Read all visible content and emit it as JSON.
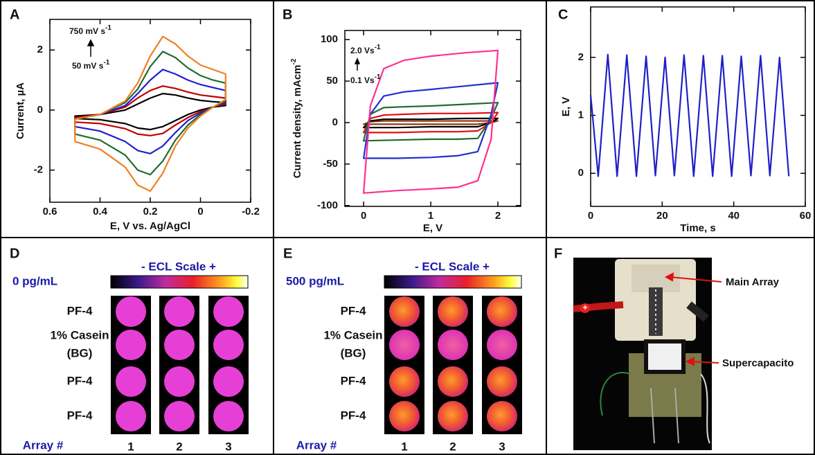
{
  "chart_data": [
    {
      "type": "cyclic_voltammogram",
      "panel": "A",
      "xlabel": "E, V vs. Ag/AgCl",
      "ylabel": "Current, µA",
      "annotations": [
        {
          "text": "750 mV s",
          "sup": "-1"
        },
        {
          "text": "50 mV s",
          "sup": "-1"
        }
      ],
      "xlim": [
        0.6,
        -0.2
      ],
      "ylim": [
        -3.07,
        3.02
      ],
      "xticks": [
        0.6,
        0.4,
        0.2,
        0,
        -0.2
      ],
      "yticks": [
        -2,
        0,
        2
      ],
      "x": [
        0.5,
        0.4,
        0.3,
        0.25,
        0.2,
        0.15,
        0.1,
        0.05,
        0,
        -0.05,
        -0.1,
        -0.1,
        -0.05,
        0,
        0.05,
        0.1,
        0.15,
        0.2,
        0.25,
        0.3,
        0.4,
        0.5
      ],
      "series": [
        {
          "color": "#000000",
          "values": [
            -0.2,
            -0.15,
            0,
            0.2,
            0.4,
            0.55,
            0.5,
            0.4,
            0.32,
            0.28,
            0.25,
            0.15,
            0.1,
            0,
            -0.15,
            -0.35,
            -0.55,
            -0.65,
            -0.6,
            -0.45,
            -0.32,
            -0.28
          ]
        },
        {
          "color": "#c00000",
          "values": [
            -0.25,
            -0.15,
            0.1,
            0.4,
            0.65,
            0.8,
            0.72,
            0.6,
            0.5,
            0.45,
            0.4,
            0.2,
            0.1,
            -0.05,
            -0.25,
            -0.5,
            -0.78,
            -0.85,
            -0.8,
            -0.62,
            -0.45,
            -0.4
          ]
        },
        {
          "color": "#1f1fd0",
          "values": [
            -0.3,
            -0.15,
            0.15,
            0.55,
            1.0,
            1.35,
            1.2,
            1.0,
            0.85,
            0.75,
            0.65,
            0.25,
            0.1,
            -0.1,
            -0.35,
            -0.75,
            -1.2,
            -1.45,
            -1.35,
            -1.05,
            -0.7,
            -0.55
          ]
        },
        {
          "color": "#1e6b2e",
          "values": [
            -0.3,
            -0.15,
            0.25,
            0.7,
            1.45,
            1.95,
            1.75,
            1.4,
            1.15,
            1.0,
            0.9,
            0.3,
            0.1,
            -0.15,
            -0.5,
            -1.0,
            -1.7,
            -2.15,
            -2.0,
            -1.5,
            -1.0,
            -0.8
          ]
        },
        {
          "color": "#f08020",
          "values": [
            -0.3,
            -0.15,
            0.3,
            0.9,
            1.8,
            2.45,
            2.2,
            1.8,
            1.5,
            1.35,
            1.2,
            0.35,
            0.1,
            -0.2,
            -0.6,
            -1.2,
            -2.1,
            -2.7,
            -2.5,
            -1.9,
            -1.3,
            -1.05
          ]
        }
      ]
    },
    {
      "type": "cyclic_voltammogram",
      "panel": "B",
      "xlabel": "E, V",
      "ylabel": {
        "text": "Current density, mAcm",
        "sup": "-2"
      },
      "annotations": [
        {
          "text": "2.0 Vs",
          "sup": "-1"
        },
        {
          "text": "0.1 Vs",
          "sup": "-1"
        }
      ],
      "xlim": [
        -0.28,
        2.34
      ],
      "ylim": [
        -101,
        111
      ],
      "xticks": [
        0,
        1,
        2
      ],
      "yticks": [
        -100,
        -50,
        0,
        50,
        100
      ],
      "x": [
        0,
        0.1,
        0.3,
        0.6,
        1,
        1.5,
        2,
        2,
        1.9,
        1.7,
        1.4,
        1,
        0.5,
        0
      ],
      "series": [
        {
          "color": "#8b3a10",
          "values": [
            -2,
            1,
            2,
            2,
            2,
            2,
            2,
            2,
            0,
            -2,
            -2,
            -2,
            -2,
            -2
          ]
        },
        {
          "color": "#000000",
          "values": [
            -6,
            2,
            4,
            4,
            4,
            5,
            5,
            5,
            0,
            -5,
            -5,
            -5,
            -6,
            -6
          ]
        },
        {
          "color": "#e01010",
          "values": [
            -12,
            5,
            9,
            10,
            11,
            11,
            12,
            12,
            0,
            -10,
            -11,
            -11,
            -12,
            -12
          ]
        },
        {
          "color": "#1e6b2e",
          "values": [
            -22,
            10,
            18,
            19,
            20,
            22,
            24,
            24,
            5,
            -19,
            -20,
            -20,
            -21,
            -22
          ]
        },
        {
          "color": "#1f2fd0",
          "values": [
            -43,
            10,
            32,
            37,
            40,
            44,
            48,
            48,
            10,
            -35,
            -40,
            -42,
            -43,
            -43
          ]
        },
        {
          "color": "#ff2f8f",
          "values": [
            -85,
            20,
            65,
            75,
            80,
            84,
            87,
            87,
            -20,
            -70,
            -78,
            -80,
            -82,
            -85
          ]
        }
      ]
    },
    {
      "type": "line",
      "panel": "C",
      "xlabel": "Time, s",
      "ylabel": "E, V",
      "xlim": [
        0,
        60
      ],
      "ylim": [
        -0.57,
        2.87
      ],
      "xticks": [
        0,
        20,
        40,
        60
      ],
      "yticks": [
        0,
        1,
        2
      ],
      "x": [
        0,
        2.1,
        4.8,
        7.4,
        10.1,
        12.8,
        15.5,
        18.1,
        20.8,
        23.4,
        26.1,
        28.8,
        31.5,
        34.1,
        36.8,
        39.4,
        42.1,
        44.8,
        47.5,
        50.1,
        52.8,
        55.4
      ],
      "series": [
        {
          "color": "#1f1fc8",
          "values": [
            1.35,
            -0.05,
            2.05,
            -0.05,
            2.04,
            -0.05,
            2.02,
            -0.04,
            2.0,
            -0.04,
            2.04,
            -0.05,
            2.03,
            -0.05,
            2.03,
            -0.05,
            2.02,
            -0.04,
            2.03,
            -0.04,
            2.0,
            -0.05
          ]
        }
      ]
    }
  ],
  "ecl_panels": [
    {
      "panel": "D",
      "concentration": "0 pg/mL",
      "scale_label": "- ECL Scale +",
      "rows": [
        [
          "PF-4"
        ],
        [
          "1% Casein",
          "(BG)"
        ],
        [
          "PF-4"
        ],
        [
          "PF-4"
        ]
      ],
      "array_label": "Array #",
      "arrays": [
        "1",
        "2",
        "3"
      ]
    },
    {
      "panel": "E",
      "concentration": "500 pg/mL",
      "scale_label": "- ECL Scale +",
      "rows": [
        [
          "PF-4"
        ],
        [
          "1% Casein",
          "(BG)"
        ],
        [
          "PF-4"
        ],
        [
          "PF-4"
        ]
      ],
      "array_label": "Array #",
      "arrays": [
        "1",
        "2",
        "3"
      ]
    }
  ],
  "photo": {
    "panel": "F",
    "labels": [
      "Main Array",
      "Supercapacito"
    ]
  }
}
